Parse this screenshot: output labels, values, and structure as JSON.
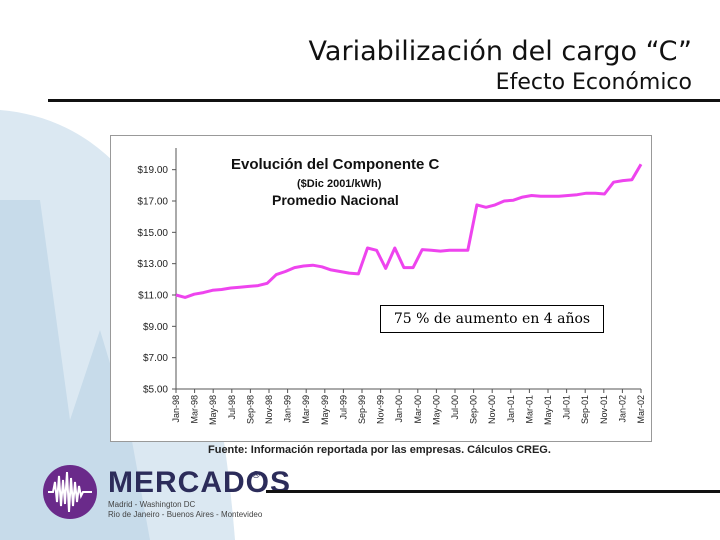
{
  "slide": {
    "title": "Variabilización del cargo “C”",
    "subtitle": "Efecto Económico",
    "annotation": "75 % de aumento en 4 años",
    "source": "Fuente:  Información reportada por las empresas.  Cálculos CREG."
  },
  "logo": {
    "wordmark": "MERCADOS",
    "registered": "®",
    "line1": "Madrid - Washington DC",
    "line2": "Rio de Janeiro - Buenos Aires - Montevideo"
  },
  "colors": {
    "series": "#ee44ee",
    "title_text": "#111111",
    "logo_purple": "#6a2a8a",
    "logo_navy": "#2c2c5a"
  },
  "chart_data": {
    "type": "line",
    "title": "Evolución del Componente C",
    "subtitle": "($Dic 2001/kWh)",
    "subtitle2": "Promedio Nacional",
    "xlabel": "",
    "ylabel": "",
    "ylim": [
      5,
      20
    ],
    "yticks": [
      "$5.00",
      "$7.00",
      "$9.00",
      "$11.00",
      "$13.00",
      "$15.00",
      "$17.00",
      "$19.00"
    ],
    "ytick_values": [
      5,
      7,
      9,
      11,
      13,
      15,
      17,
      19
    ],
    "xticks": [
      "Jan-98",
      "Mar-98",
      "May-98",
      "Jul-98",
      "Sep-98",
      "Nov-98",
      "Jan-99",
      "Mar-99",
      "May-99",
      "Jul-99",
      "Sep-99",
      "Nov-99",
      "Jan-00",
      "Mar-00",
      "May-00",
      "Jul-00",
      "Sep-00",
      "Nov-00",
      "Jan-01",
      "Mar-01",
      "May-01",
      "Jul-01",
      "Sep-01",
      "Nov-01",
      "Jan-02",
      "Mar-02"
    ],
    "x": [
      0,
      1,
      2,
      3,
      4,
      5,
      6,
      7,
      8,
      9,
      10,
      11,
      12,
      13,
      14,
      15,
      16,
      17,
      18,
      19,
      20,
      21,
      22,
      23,
      24,
      25,
      26,
      27,
      28,
      29,
      30,
      31,
      32,
      33,
      34,
      35,
      36,
      37,
      38,
      39,
      40,
      41,
      42,
      43,
      44,
      45,
      46,
      47,
      48,
      49,
      50,
      51
    ],
    "series": [
      {
        "name": "Promedio Nacional",
        "values": [
          11.0,
          10.85,
          11.05,
          11.15,
          11.3,
          11.35,
          11.45,
          11.5,
          11.55,
          11.6,
          11.75,
          12.3,
          12.5,
          12.75,
          12.85,
          12.9,
          12.8,
          12.6,
          12.5,
          12.4,
          12.35,
          14.0,
          13.85,
          12.7,
          14.0,
          12.75,
          12.75,
          13.9,
          13.85,
          13.8,
          13.85,
          13.85,
          13.85,
          16.75,
          16.6,
          16.75,
          17.0,
          17.05,
          17.25,
          17.35,
          17.3,
          17.3,
          17.3,
          17.35,
          17.4,
          17.5,
          17.5,
          17.45,
          18.2,
          18.3,
          18.35,
          19.35
        ]
      }
    ]
  }
}
